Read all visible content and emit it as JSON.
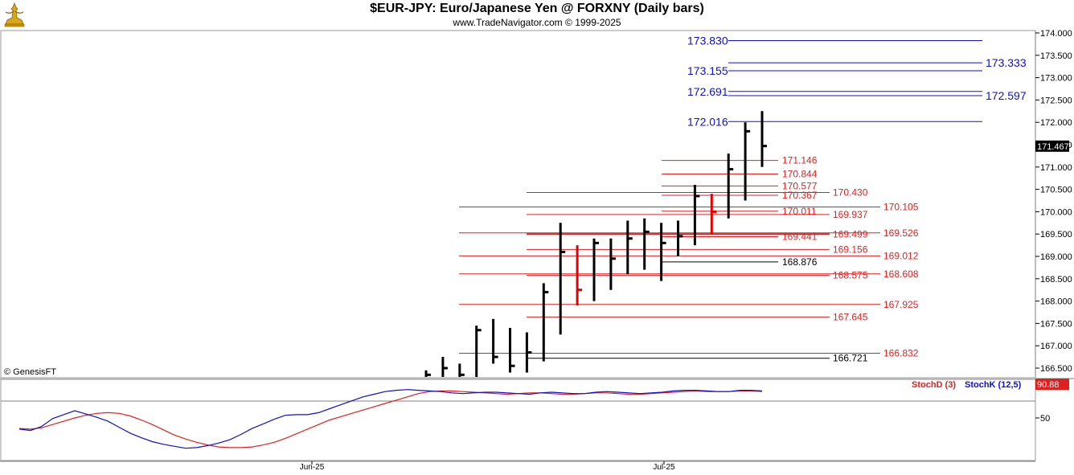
{
  "header": {
    "title": "$EUR-JPY:  Euro/Japanese Yen @ FORXNY  (Daily bars)",
    "subtitle": "www.TradeNavigator.com © 1999-2025",
    "copyright": "© GenesisFT"
  },
  "colors": {
    "bar": "#000000",
    "bar_down": "#e00000",
    "fib_red": "#e02020",
    "fib_blue": "#1010c8",
    "stoch_d": "#e02020",
    "stoch_k": "#1010c8",
    "last_price_bg": "#000000",
    "stoch_badge_bg": "#e02020"
  },
  "chart_data": [
    {
      "type": "ohlc",
      "title": "$EUR-JPY:  Euro/Japanese Yen @ FORXNY  (Daily bars)",
      "ylim": [
        166.3,
        174.1
      ],
      "y_ticks": [
        "174.000",
        "173.500",
        "173.000",
        "172.500",
        "172.000",
        "171.500",
        "171.000",
        "170.500",
        "170.000",
        "169.500",
        "169.000",
        "168.500",
        "168.000",
        "167.500",
        "167.000",
        "166.500"
      ],
      "x_labels": [
        "Jun-25",
        "Jul-25"
      ],
      "last_price": "171.467",
      "bars": [
        {
          "date": "bar1",
          "high": 166.45,
          "low": 166.3,
          "close": 166.35,
          "color": "black"
        },
        {
          "date": "bar2",
          "high": 166.75,
          "low": 166.3,
          "close": 166.5,
          "color": "black"
        },
        {
          "date": "bar3",
          "high": 166.6,
          "low": 166.3,
          "close": 166.35,
          "color": "black"
        },
        {
          "date": "bar4",
          "high": 167.45,
          "low": 166.3,
          "close": 167.35,
          "color": "black"
        },
        {
          "date": "bar5",
          "high": 167.6,
          "low": 166.6,
          "close": 166.75,
          "color": "black"
        },
        {
          "date": "bar6",
          "high": 167.4,
          "low": 166.4,
          "close": 166.55,
          "color": "black"
        },
        {
          "date": "bar7",
          "high": 167.3,
          "low": 166.4,
          "close": 166.85,
          "color": "black"
        },
        {
          "date": "bar8",
          "high": 168.4,
          "low": 166.65,
          "close": 168.2,
          "color": "black"
        },
        {
          "date": "bar9",
          "high": 169.75,
          "low": 167.25,
          "close": 169.1,
          "color": "black"
        },
        {
          "date": "bar10",
          "high": 169.25,
          "low": 167.9,
          "close": 168.25,
          "color": "red"
        },
        {
          "date": "bar11",
          "high": 169.4,
          "low": 168.0,
          "close": 169.3,
          "color": "black"
        },
        {
          "date": "bar12",
          "high": 169.4,
          "low": 168.25,
          "close": 168.95,
          "color": "black"
        },
        {
          "date": "bar13",
          "high": 169.8,
          "low": 168.6,
          "close": 169.4,
          "color": "black"
        },
        {
          "date": "bar14",
          "high": 169.85,
          "low": 168.7,
          "close": 169.55,
          "color": "black"
        },
        {
          "date": "bar15",
          "high": 169.75,
          "low": 168.45,
          "close": 169.3,
          "color": "black"
        },
        {
          "date": "bar16",
          "high": 169.8,
          "low": 169.0,
          "close": 169.45,
          "color": "black"
        },
        {
          "date": "bar17",
          "high": 170.6,
          "low": 169.25,
          "close": 170.35,
          "color": "black"
        },
        {
          "date": "bar18",
          "high": 170.4,
          "low": 169.5,
          "close": 170.0,
          "color": "red"
        },
        {
          "date": "bar19",
          "high": 171.3,
          "low": 169.85,
          "close": 170.95,
          "color": "black"
        },
        {
          "date": "bar20",
          "high": 172.0,
          "low": 170.25,
          "close": 171.8,
          "color": "black"
        },
        {
          "date": "bar21",
          "high": 172.25,
          "low": 171.0,
          "close": 171.47,
          "color": "black"
        }
      ],
      "levels": [
        {
          "value": 173.83,
          "label": "173.830",
          "color": "blue"
        },
        {
          "value": 173.333,
          "label": "173.333",
          "color": "blue"
        },
        {
          "value": 173.155,
          "label": "173.155",
          "color": "blue"
        },
        {
          "value": 172.691,
          "label": "172.691",
          "color": "blue"
        },
        {
          "value": 172.597,
          "label": "172.597",
          "color": "blue"
        },
        {
          "value": 172.016,
          "label": "172.016",
          "color": "blue"
        },
        {
          "value": 171.146,
          "label": "171.146",
          "color": "red"
        },
        {
          "value": 170.844,
          "label": "170.844",
          "color": "red"
        },
        {
          "value": 170.577,
          "label": "170.577",
          "color": "red"
        },
        {
          "value": 170.43,
          "label": "170.430",
          "color": "red"
        },
        {
          "value": 170.367,
          "label": "170.367",
          "color": "red"
        },
        {
          "value": 170.105,
          "label": "170.105",
          "color": "red"
        },
        {
          "value": 170.011,
          "label": "170.011",
          "color": "red"
        },
        {
          "value": 169.937,
          "label": "169.937",
          "color": "red"
        },
        {
          "value": 169.526,
          "label": "169.526",
          "color": "red"
        },
        {
          "value": 169.499,
          "label": "169.499",
          "color": "red"
        },
        {
          "value": 169.441,
          "label": "169.441",
          "color": "red"
        },
        {
          "value": 169.156,
          "label": "169.156",
          "color": "red"
        },
        {
          "value": 169.012,
          "label": "169.012",
          "color": "red"
        },
        {
          "value": 168.876,
          "label": "168.876",
          "color": "black"
        },
        {
          "value": 168.608,
          "label": "168.608",
          "color": "red"
        },
        {
          "value": 168.575,
          "label": "168.575",
          "color": "red"
        },
        {
          "value": 167.925,
          "label": "167.925",
          "color": "red"
        },
        {
          "value": 167.645,
          "label": "167.645",
          "color": "red"
        },
        {
          "value": 166.832,
          "label": "166.832",
          "color": "red"
        },
        {
          "value": 166.721,
          "label": "166.721",
          "color": "black"
        }
      ]
    },
    {
      "type": "line",
      "title": "",
      "ylim": [
        0,
        100
      ],
      "y_ticks": [
        "50"
      ],
      "last_value": "90.88",
      "series": [
        {
          "name": "StochD (3)",
          "color": "red",
          "values": [
            34,
            33,
            35,
            40,
            45,
            50,
            54,
            57,
            58,
            57,
            53,
            47,
            40,
            32,
            24,
            18,
            13,
            9,
            6,
            5,
            5,
            6,
            9,
            13,
            19,
            26,
            33,
            40,
            47,
            52,
            57,
            62,
            67,
            72,
            77,
            82,
            87,
            90,
            91,
            91,
            90,
            89,
            88,
            87,
            86,
            87,
            88,
            88,
            87,
            86,
            86,
            87,
            88,
            88,
            87,
            86,
            86,
            87,
            88,
            89,
            90,
            91,
            90,
            90,
            90,
            91,
            91,
            90
          ]
        },
        {
          "name": "StochK (12,5)",
          "color": "blue",
          "values": [
            33,
            31,
            37,
            49,
            55,
            61,
            56,
            51,
            45,
            36,
            27,
            20,
            14,
            10,
            7,
            4,
            5,
            8,
            12,
            17,
            25,
            34,
            41,
            48,
            54,
            55,
            55,
            58,
            64,
            70,
            76,
            82,
            86,
            90,
            92,
            93,
            92,
            91,
            90,
            88,
            87,
            88,
            89,
            89,
            88,
            87,
            86,
            88,
            89,
            88,
            87,
            87,
            89,
            90,
            89,
            88,
            87,
            88,
            89,
            91,
            92,
            92,
            91,
            90,
            90,
            92,
            92,
            91
          ]
        }
      ]
    }
  ]
}
